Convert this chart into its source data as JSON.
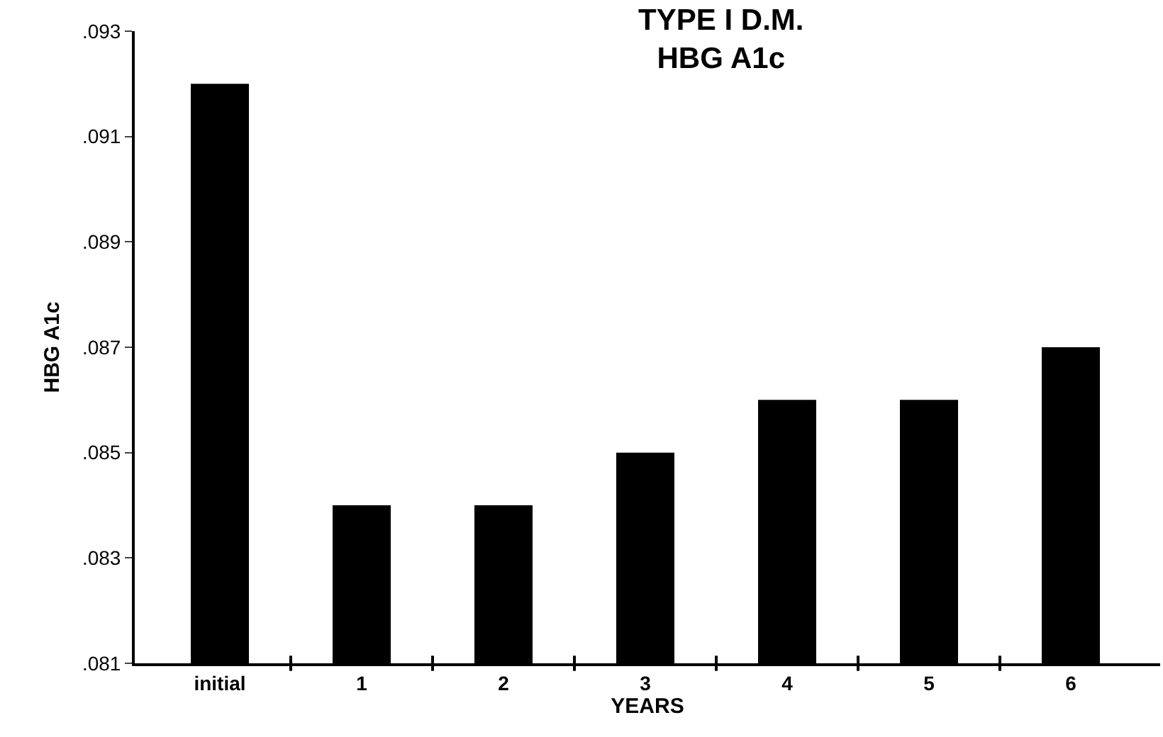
{
  "chart_data": {
    "type": "bar",
    "title": "TYPE I D.M.\nHBG A1c",
    "xlabel": "YEARS",
    "ylabel": "HBG A1c",
    "categories": [
      "initial",
      "1",
      "2",
      "3",
      "4",
      "5",
      "6"
    ],
    "values": [
      0.092,
      0.084,
      0.084,
      0.085,
      0.086,
      0.086,
      0.087
    ],
    "color": "#000000",
    "ylim": [
      0.081,
      0.093
    ],
    "yticks": [
      {
        "value": 0.081,
        "label": ".081"
      },
      {
        "value": 0.083,
        "label": ".083"
      },
      {
        "value": 0.085,
        "label": ".085"
      },
      {
        "value": 0.087,
        "label": ".087"
      },
      {
        "value": 0.089,
        "label": ".089"
      },
      {
        "value": 0.091,
        "label": ".091"
      },
      {
        "value": 0.093,
        "label": ".093"
      }
    ],
    "grid": false,
    "legend": false
  }
}
